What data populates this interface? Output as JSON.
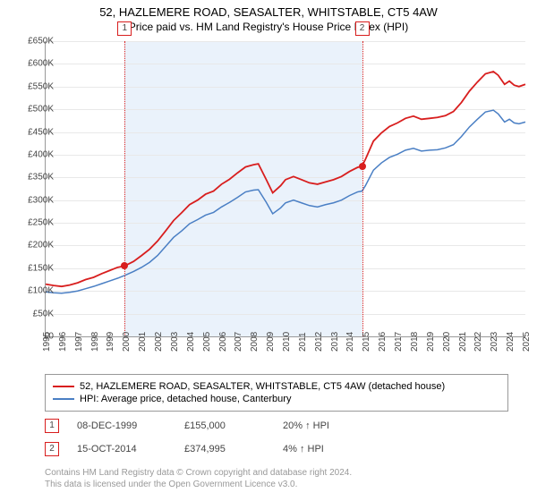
{
  "title": "52, HAZLEMERE ROAD, SEASALTER, WHITSTABLE, CT5 4AW",
  "subtitle": "Price paid vs. HM Land Registry's House Price Index (HPI)",
  "chart": {
    "type": "line",
    "background_color": "#ffffff",
    "grid_color": "#e8e8e8",
    "axis_color": "#999999",
    "shade_color": "#eaf2fb",
    "yaxis": {
      "min": 0,
      "max": 650000,
      "ticks": [
        0,
        50000,
        100000,
        150000,
        200000,
        250000,
        300000,
        350000,
        400000,
        450000,
        500000,
        550000,
        600000,
        650000
      ],
      "tick_labels": [
        "£0",
        "£50K",
        "£100K",
        "£150K",
        "£200K",
        "£250K",
        "£300K",
        "£350K",
        "£400K",
        "£450K",
        "£500K",
        "£550K",
        "£600K",
        "£650K"
      ]
    },
    "xaxis": {
      "min": 1995,
      "max": 2025,
      "ticks": [
        1995,
        1996,
        1997,
        1998,
        1999,
        2000,
        2001,
        2002,
        2003,
        2004,
        2005,
        2006,
        2007,
        2008,
        2009,
        2010,
        2011,
        2012,
        2013,
        2014,
        2015,
        2016,
        2017,
        2018,
        2019,
        2020,
        2021,
        2022,
        2023,
        2024,
        2025
      ]
    },
    "series": [
      {
        "name": "property",
        "label": "52, HAZLEMERE ROAD, SEASALTER, WHITSTABLE, CT5 4AW (detached house)",
        "color": "#d81e1e",
        "line_width": 1.8,
        "data": [
          [
            1995,
            115000
          ],
          [
            1995.5,
            112000
          ],
          [
            1996,
            110000
          ],
          [
            1996.5,
            113000
          ],
          [
            1997,
            118000
          ],
          [
            1997.5,
            125000
          ],
          [
            1998,
            130000
          ],
          [
            1998.5,
            138000
          ],
          [
            1999,
            145000
          ],
          [
            1999.5,
            152000
          ],
          [
            1999.94,
            155000
          ],
          [
            2000.5,
            165000
          ],
          [
            2001,
            178000
          ],
          [
            2001.5,
            192000
          ],
          [
            2002,
            210000
          ],
          [
            2002.5,
            232000
          ],
          [
            2003,
            255000
          ],
          [
            2003.5,
            272000
          ],
          [
            2004,
            290000
          ],
          [
            2004.5,
            300000
          ],
          [
            2005,
            313000
          ],
          [
            2005.5,
            320000
          ],
          [
            2006,
            335000
          ],
          [
            2006.5,
            346000
          ],
          [
            2007,
            360000
          ],
          [
            2007.5,
            373000
          ],
          [
            2008,
            378000
          ],
          [
            2008.3,
            380000
          ],
          [
            2008.8,
            345000
          ],
          [
            2009.2,
            316000
          ],
          [
            2009.7,
            332000
          ],
          [
            2010,
            345000
          ],
          [
            2010.5,
            352000
          ],
          [
            2011,
            345000
          ],
          [
            2011.5,
            338000
          ],
          [
            2012,
            335000
          ],
          [
            2012.5,
            340000
          ],
          [
            2013,
            345000
          ],
          [
            2013.5,
            352000
          ],
          [
            2014,
            363000
          ],
          [
            2014.5,
            372000
          ],
          [
            2014.79,
            374995
          ],
          [
            2015,
            390000
          ],
          [
            2015.5,
            430000
          ],
          [
            2016,
            448000
          ],
          [
            2016.5,
            462000
          ],
          [
            2017,
            470000
          ],
          [
            2017.5,
            480000
          ],
          [
            2018,
            485000
          ],
          [
            2018.5,
            478000
          ],
          [
            2019,
            480000
          ],
          [
            2019.5,
            482000
          ],
          [
            2020,
            486000
          ],
          [
            2020.5,
            495000
          ],
          [
            2021,
            515000
          ],
          [
            2021.5,
            540000
          ],
          [
            2022,
            560000
          ],
          [
            2022.5,
            578000
          ],
          [
            2023,
            583000
          ],
          [
            2023.3,
            575000
          ],
          [
            2023.7,
            555000
          ],
          [
            2024,
            562000
          ],
          [
            2024.3,
            553000
          ],
          [
            2024.6,
            550000
          ],
          [
            2025,
            555000
          ]
        ]
      },
      {
        "name": "hpi",
        "label": "HPI: Average price, detached house, Canterbury",
        "color": "#4a7fc4",
        "line_width": 1.5,
        "data": [
          [
            1995,
            98000
          ],
          [
            1995.5,
            96000
          ],
          [
            1996,
            95000
          ],
          [
            1996.5,
            97000
          ],
          [
            1997,
            100000
          ],
          [
            1997.5,
            105000
          ],
          [
            1998,
            110000
          ],
          [
            1998.5,
            116000
          ],
          [
            1999,
            122000
          ],
          [
            1999.5,
            128000
          ],
          [
            2000,
            135000
          ],
          [
            2000.5,
            143000
          ],
          [
            2001,
            152000
          ],
          [
            2001.5,
            163000
          ],
          [
            2002,
            178000
          ],
          [
            2002.5,
            198000
          ],
          [
            2003,
            218000
          ],
          [
            2003.5,
            232000
          ],
          [
            2004,
            248000
          ],
          [
            2004.5,
            257000
          ],
          [
            2005,
            267000
          ],
          [
            2005.5,
            273000
          ],
          [
            2006,
            285000
          ],
          [
            2006.5,
            295000
          ],
          [
            2007,
            306000
          ],
          [
            2007.5,
            318000
          ],
          [
            2008,
            322000
          ],
          [
            2008.3,
            323000
          ],
          [
            2008.8,
            295000
          ],
          [
            2009.2,
            270000
          ],
          [
            2009.7,
            283000
          ],
          [
            2010,
            294000
          ],
          [
            2010.5,
            300000
          ],
          [
            2011,
            294000
          ],
          [
            2011.5,
            288000
          ],
          [
            2012,
            285000
          ],
          [
            2012.5,
            290000
          ],
          [
            2013,
            294000
          ],
          [
            2013.5,
            300000
          ],
          [
            2014,
            310000
          ],
          [
            2014.5,
            318000
          ],
          [
            2014.79,
            320000
          ],
          [
            2015,
            332000
          ],
          [
            2015.5,
            366000
          ],
          [
            2016,
            382000
          ],
          [
            2016.5,
            394000
          ],
          [
            2017,
            401000
          ],
          [
            2017.5,
            410000
          ],
          [
            2018,
            414000
          ],
          [
            2018.5,
            408000
          ],
          [
            2019,
            410000
          ],
          [
            2019.5,
            411000
          ],
          [
            2020,
            415000
          ],
          [
            2020.5,
            422000
          ],
          [
            2021,
            440000
          ],
          [
            2021.5,
            461000
          ],
          [
            2022,
            478000
          ],
          [
            2022.5,
            494000
          ],
          [
            2023,
            498000
          ],
          [
            2023.3,
            490000
          ],
          [
            2023.7,
            472000
          ],
          [
            2024,
            478000
          ],
          [
            2024.3,
            470000
          ],
          [
            2024.6,
            468000
          ],
          [
            2025,
            472000
          ]
        ]
      }
    ],
    "markers": [
      {
        "id": "1",
        "x": 1999.94,
        "y": 155000,
        "box_color": "#d81e1e",
        "dot_color": "#d81e1e"
      },
      {
        "id": "2",
        "x": 2014.79,
        "y": 374995,
        "box_color": "#d81e1e",
        "dot_color": "#d81e1e"
      }
    ],
    "shade_range": [
      1999.94,
      2014.79
    ]
  },
  "sales": [
    {
      "id": "1",
      "date": "08-DEC-1999",
      "price": "£155,000",
      "delta": "20% ↑ HPI",
      "color": "#d81e1e"
    },
    {
      "id": "2",
      "date": "15-OCT-2014",
      "price": "£374,995",
      "delta": "4% ↑ HPI",
      "color": "#d81e1e"
    }
  ],
  "footer_l1": "Contains HM Land Registry data © Crown copyright and database right 2024.",
  "footer_l2": "This data is licensed under the Open Government Licence v3.0."
}
